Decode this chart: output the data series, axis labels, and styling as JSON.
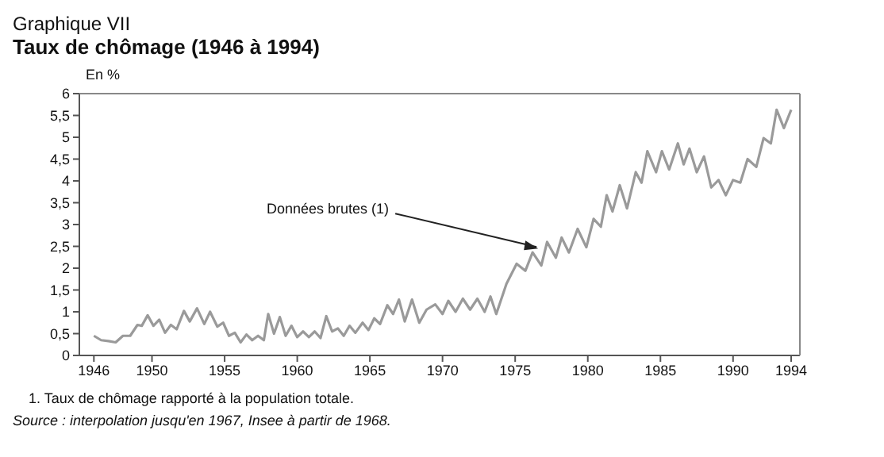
{
  "chart_data": {
    "type": "line",
    "subtitle": "Graphique VII",
    "title": "Taux de chômage (1946 à 1994)",
    "ylabel": "En %",
    "annotations": [
      {
        "text": "Données brutes (1)",
        "x": 1976.8,
        "y": 2.45
      },
      "1. Taux de chômage rapporté à la population totale.",
      "Source :  interpolation jusqu'en 1967, Insee à partir de 1968."
    ],
    "x": [
      1946.0,
      1946.5,
      1947.0,
      1947.5,
      1948.0,
      1948.5,
      1949.0,
      1949.3,
      1949.7,
      1950.1,
      1950.5,
      1950.9,
      1951.3,
      1951.7,
      1952.2,
      1952.6,
      1953.1,
      1953.6,
      1954.0,
      1954.5,
      1954.9,
      1955.3,
      1955.7,
      1956.1,
      1956.5,
      1956.9,
      1957.3,
      1957.7,
      1958.0,
      1958.4,
      1958.8,
      1959.2,
      1959.6,
      1960.0,
      1960.4,
      1960.8,
      1961.2,
      1961.6,
      1962.0,
      1962.4,
      1962.8,
      1963.2,
      1963.6,
      1964.0,
      1964.5,
      1964.9,
      1965.3,
      1965.7,
      1966.2,
      1966.6,
      1967.0,
      1967.4,
      1967.9,
      1968.4,
      1968.9,
      1969.5,
      1970.0,
      1970.4,
      1970.9,
      1971.4,
      1971.9,
      1972.4,
      1972.9,
      1973.3,
      1973.7,
      1974.4,
      1975.1,
      1975.7,
      1976.2,
      1976.8,
      1977.2,
      1977.8,
      1978.2,
      1978.7,
      1979.3,
      1979.9,
      1980.4,
      1980.9,
      1981.3,
      1981.7,
      1982.2,
      1982.7,
      1983.3,
      1983.7,
      1984.1,
      1984.7,
      1985.1,
      1985.6,
      1986.2,
      1986.6,
      1987.0,
      1987.5,
      1988.0,
      1988.5,
      1989.0,
      1989.5,
      1990.0,
      1990.5,
      1991.0,
      1991.6,
      1992.1,
      1992.6,
      1993.0,
      1993.5,
      1994.0
    ],
    "series": [
      {
        "color": "#9a9a9a",
        "values": [
          0.45,
          0.35,
          0.33,
          0.3,
          0.45,
          0.45,
          0.7,
          0.68,
          0.92,
          0.68,
          0.82,
          0.52,
          0.7,
          0.6,
          1.02,
          0.78,
          1.08,
          0.72,
          1.0,
          0.66,
          0.75,
          0.45,
          0.52,
          0.3,
          0.48,
          0.35,
          0.45,
          0.35,
          0.95,
          0.5,
          0.88,
          0.45,
          0.68,
          0.42,
          0.55,
          0.42,
          0.55,
          0.4,
          0.9,
          0.55,
          0.62,
          0.45,
          0.68,
          0.52,
          0.75,
          0.58,
          0.85,
          0.72,
          1.15,
          0.95,
          1.28,
          0.78,
          1.28,
          0.75,
          1.05,
          1.17,
          0.95,
          1.25,
          1.0,
          1.3,
          1.05,
          1.3,
          1.0,
          1.35,
          0.95,
          1.64,
          2.1,
          1.94,
          2.36,
          2.06,
          2.6,
          2.24,
          2.7,
          2.36,
          2.9,
          2.48,
          3.13,
          2.95,
          3.67,
          3.3,
          3.9,
          3.37,
          4.2,
          3.96,
          4.68,
          4.2,
          4.68,
          4.26,
          4.86,
          4.38,
          4.74,
          4.2,
          4.56,
          3.85,
          4.02,
          3.67,
          4.02,
          3.96,
          4.5,
          4.32,
          4.98,
          4.86,
          5.63,
          5.21,
          5.63
        ]
      }
    ],
    "xlim": [
      1945,
      1994.6
    ],
    "xticks": [
      1946,
      1950,
      1955,
      1960,
      1965,
      1970,
      1975,
      1980,
      1985,
      1990,
      1994
    ],
    "ylim": [
      0,
      6
    ],
    "yticks": [
      0,
      {
        "value": 0.5,
        "label": "0,5"
      },
      1,
      {
        "value": 1.5,
        "label": "1,5"
      },
      2,
      {
        "value": 2.5,
        "label": "2,5"
      },
      3,
      {
        "value": 3.5,
        "label": "3,5"
      },
      4,
      {
        "value": 4.5,
        "label": "4,5"
      },
      5,
      {
        "value": 5.5,
        "label": "5,5"
      },
      6
    ],
    "grid": false,
    "legend": false,
    "marker": "none",
    "line_style": "solid"
  }
}
